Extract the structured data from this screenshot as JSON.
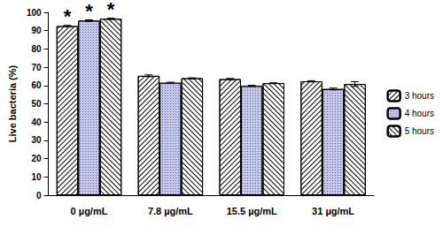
{
  "chart_data": {
    "type": "bar",
    "y_label": "Live bacteria (%)",
    "categories": [
      "0 µg/mL",
      "7.8 µg/mL",
      "15.5 µg/mL",
      "31 µg/mL"
    ],
    "series": [
      {
        "name": "3 hours",
        "color": "#ffffff",
        "values": [
          92.5,
          65.3,
          63.5,
          62.3
        ],
        "errors": [
          0.4,
          0.5,
          0.4,
          0.3
        ]
      },
      {
        "name": "4 hours",
        "color": "#c8c8ee",
        "values": [
          95.5,
          61.5,
          59.8,
          58.1
        ],
        "errors": [
          0.4,
          0.3,
          0.3,
          0.5
        ]
      },
      {
        "name": "5 hours",
        "color": "#ffffff",
        "values": [
          96.5,
          64.0,
          61.3,
          60.8
        ],
        "errors": [
          0.3,
          0.2,
          0.2,
          1.3
        ]
      }
    ],
    "ylim": [
      0,
      100
    ],
    "yticks": [
      0,
      10,
      20,
      30,
      40,
      50,
      60,
      70,
      80,
      90,
      100
    ],
    "grid": false,
    "legend": "right",
    "annotations": [
      {
        "text": "*",
        "category": "0 µg/mL",
        "series": "3 hours"
      },
      {
        "text": "*",
        "category": "0 µg/mL",
        "series": "4 hours"
      },
      {
        "text": "*",
        "category": "0 µg/mL",
        "series": "5 hours"
      }
    ]
  }
}
